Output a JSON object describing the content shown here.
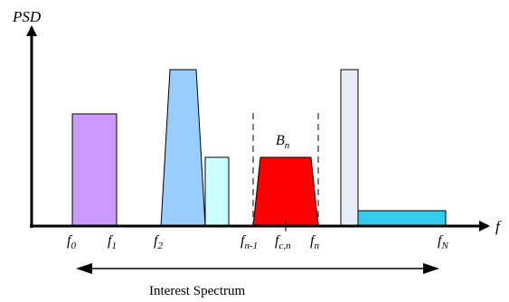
{
  "diagram": {
    "y_axis_label": "PSD",
    "x_axis_label": "f",
    "band_label": {
      "main": "B",
      "sub": "n"
    },
    "caption": "Interest Spectrum",
    "ticks": [
      {
        "main": "f",
        "sub": "0"
      },
      {
        "main": "f",
        "sub": "1"
      },
      {
        "main": "f",
        "sub": "2"
      },
      {
        "main": "f",
        "sub": "n-1"
      },
      {
        "main": "f",
        "sub": "c,n"
      },
      {
        "main": "f",
        "sub": "n"
      },
      {
        "main": "f",
        "sub": "N"
      }
    ],
    "colors": {
      "band_0_1": "#cc99ff",
      "trapezoid_blue": "#99ccff",
      "light_cyan": "#ccffff",
      "red_band": "#ff0000",
      "pale_bar": "#e6ecf7",
      "cyan_bar": "#33ccee"
    }
  }
}
